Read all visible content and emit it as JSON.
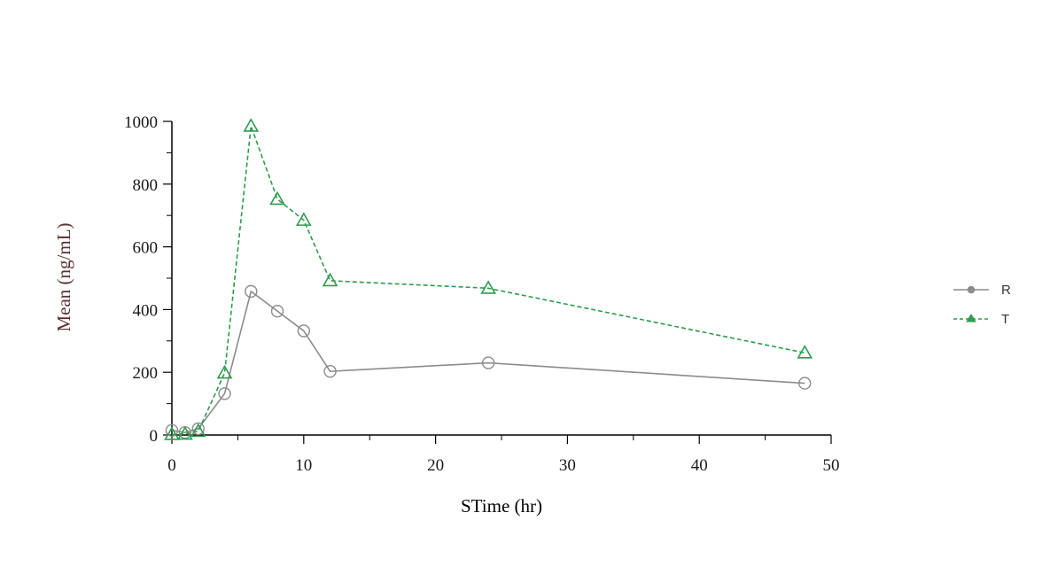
{
  "chart_data": {
    "type": "line",
    "xlabel": "STime (hr)",
    "ylabel": "Mean (ng/mL)",
    "xlim": [
      0,
      50
    ],
    "ylim": [
      0,
      1000
    ],
    "xticks": [
      "0",
      "10",
      "20",
      "30",
      "40",
      "50"
    ],
    "yticks": [
      "0",
      "200",
      "400",
      "600",
      "800",
      "1000"
    ],
    "grid": false,
    "legend_position": "right",
    "series": [
      {
        "name": "R",
        "color": "#8c8c8c",
        "line_style": "solid",
        "marker": "circle",
        "x": [
          0,
          1,
          2,
          4,
          6,
          8,
          10,
          12,
          24,
          48
        ],
        "y": [
          15,
          8,
          20,
          132,
          458,
          395,
          332,
          203,
          230,
          165
        ]
      },
      {
        "name": "T",
        "color": "#2e9b4e",
        "line_style": "dashed",
        "marker": "triangle",
        "x": [
          0,
          1,
          2,
          4,
          6,
          8,
          10,
          12,
          24,
          48
        ],
        "y": [
          2,
          3,
          12,
          198,
          985,
          752,
          685,
          492,
          468,
          262
        ]
      }
    ],
    "colors": {
      "axis": "#000000",
      "ylabel": "#5a3030",
      "xlabel": "#000000"
    }
  }
}
